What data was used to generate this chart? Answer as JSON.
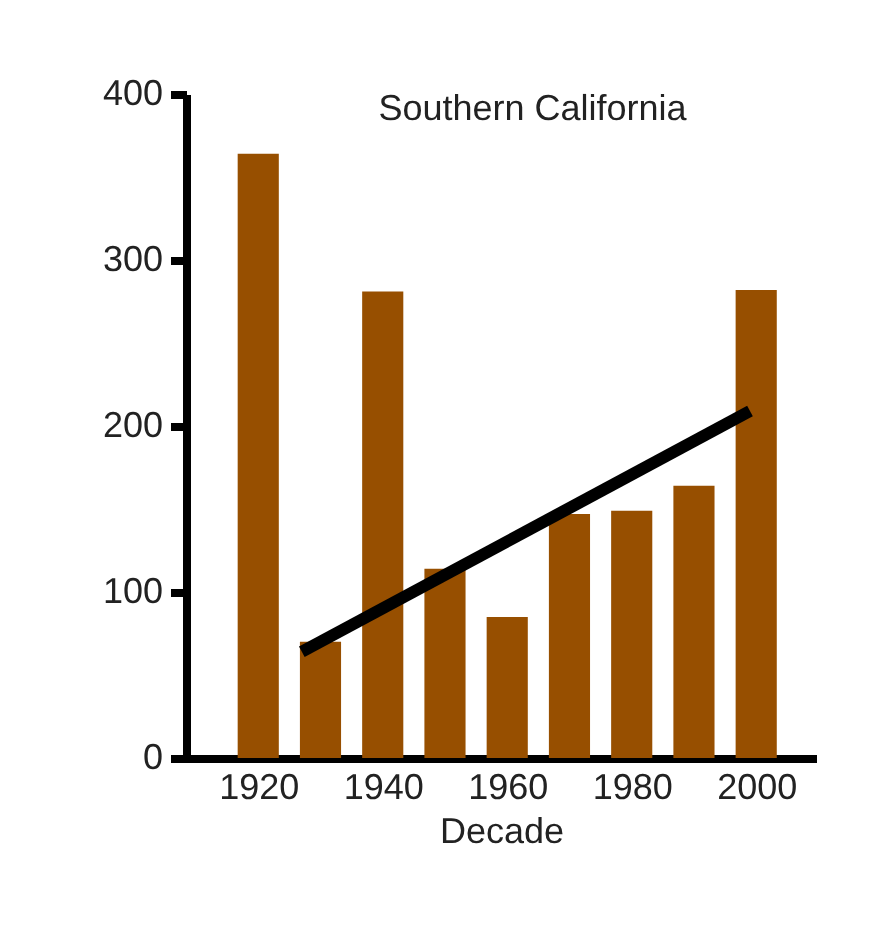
{
  "chart_data": {
    "type": "bar",
    "title": "Southern California",
    "xlabel": "Decade",
    "x": [
      1920,
      1930,
      1940,
      1950,
      1960,
      1970,
      1980,
      1990,
      2000
    ],
    "series": [
      {
        "color": "#974f00",
        "values": [
          364,
          70,
          281,
          114,
          85,
          147,
          149,
          164,
          282
        ]
      },
      {
        "type": "line",
        "color": "#000000",
        "x": [
          1927,
          1999
        ],
        "values": [
          64,
          209
        ]
      }
    ],
    "xlim": [
      1910,
      2008
    ],
    "xticks": [
      1920,
      1940,
      1960,
      1980,
      2000
    ],
    "ylim": [
      0,
      400
    ],
    "yticks": [
      0,
      100,
      200,
      300,
      400
    ],
    "grid": false
  }
}
